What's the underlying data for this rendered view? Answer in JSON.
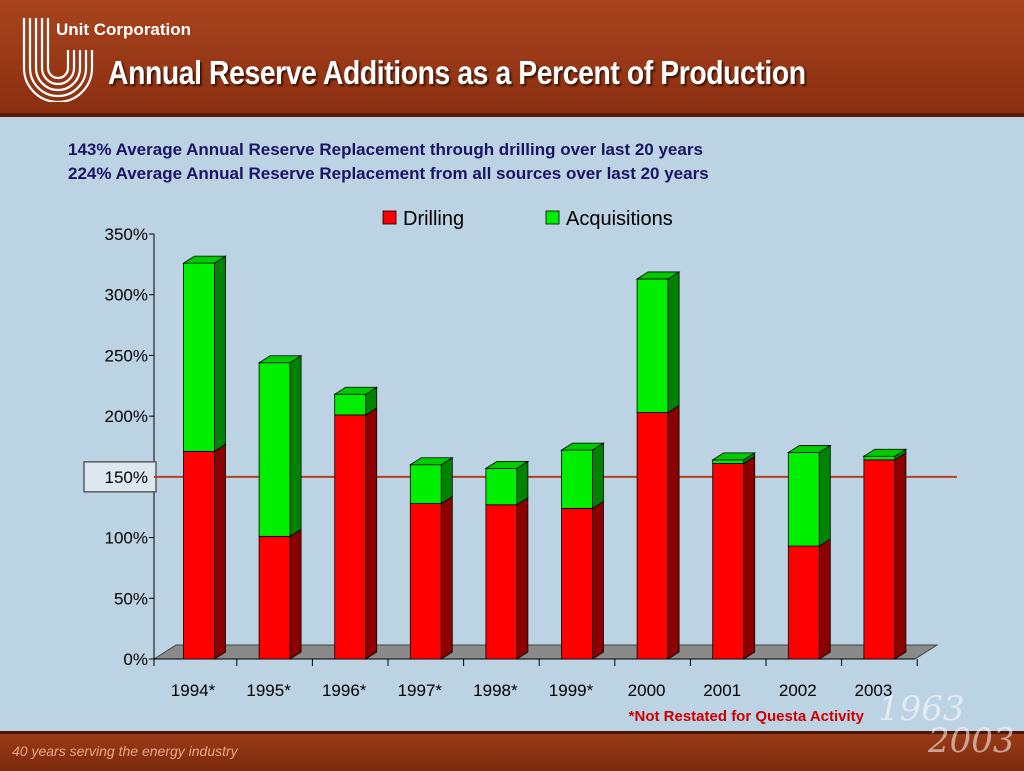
{
  "header": {
    "company": "Unit Corporation",
    "title": "Annual Reserve Additions as a Percent of Production"
  },
  "subtitles": [
    "143% Average Annual Reserve Replacement through drilling over last 20 years",
    "224% Average Annual Reserve Replacement from all sources over last 20 years"
  ],
  "chart_data": {
    "type": "bar",
    "stacked": true,
    "categories": [
      "1994*",
      "1995*",
      "1996*",
      "1997*",
      "1998*",
      "1999*",
      "2000",
      "2001",
      "2002",
      "2003"
    ],
    "series": [
      {
        "name": "Drilling",
        "color": "#ff0000",
        "values": [
          171,
          101,
          201,
          128,
          127,
          124,
          203,
          161,
          93,
          164
        ]
      },
      {
        "name": "Acquisitions",
        "color": "#00ee00",
        "values": [
          155,
          143,
          17,
          32,
          30,
          48,
          110,
          3,
          77,
          3
        ]
      }
    ],
    "yticks": [
      "0%",
      "50%",
      "100%",
      "150%",
      "200%",
      "250%",
      "300%",
      "350%"
    ],
    "ylim": [
      0,
      350
    ],
    "reference_line": {
      "value": 150,
      "color": "#b5401e"
    },
    "highlighted_tick": "150%",
    "legend_position": "top",
    "note": "*Not Restated for Questa Activity"
  },
  "footer": {
    "tagline": "40 years serving the energy industry",
    "watermark": [
      "1963",
      "2003"
    ]
  }
}
